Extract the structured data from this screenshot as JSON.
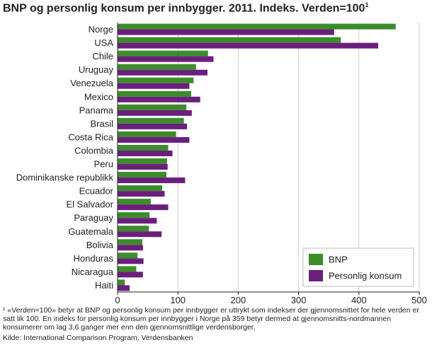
{
  "title": "BNP og personlig konsum per innbygger. 2011. Indeks. Verden=100",
  "title_sup": "1",
  "footnote": "¹ «Verden=100» betyr at BNP og personlig konsum per innbygger er uttrykt som indekser der gjennomsnittet for hele verden er satt lik 100. En indeks for personlig konsum per innbygger i Norge på 359 betyr dermed at gjennomsnitts-nordmannen konsumerer om lag 3,6 ganger mer enn den gjennomsnittlige verdensborger.",
  "source": "Kilde: International Comparison Program, Verdensbanken",
  "chart_data": {
    "type": "bar",
    "orientation": "horizontal",
    "categories": [
      "Norge",
      "USA",
      "Chile",
      "Uruguay",
      "Venezuela",
      "Mexico",
      "Panama",
      "Brasil",
      "Costa Rica",
      "Colombia",
      "Peru",
      "Dominikanske republikk",
      "Ecuador",
      "El Salvador",
      "Paraguay",
      "Guatemala",
      "Bolivia",
      "Honduras",
      "Nicaragua",
      "Haiti"
    ],
    "series": [
      {
        "name": "BNP",
        "color": "#3c8c2c",
        "values": [
          461,
          370,
          150,
          130,
          126,
          122,
          114,
          110,
          97,
          84,
          82,
          81,
          74,
          55,
          53,
          52,
          41,
          33,
          31,
          12
        ]
      },
      {
        "name": "Personlig konsum",
        "color": "#6b1f7c",
        "values": [
          359,
          432,
          159,
          149,
          119,
          137,
          123,
          115,
          119,
          91,
          83,
          112,
          78,
          84,
          65,
          73,
          42,
          43,
          42,
          20
        ]
      }
    ],
    "xlim": [
      0,
      500
    ],
    "xticks": [
      0,
      100,
      200,
      300,
      400,
      500
    ],
    "grid": true,
    "legend_position": "bottom-right"
  }
}
